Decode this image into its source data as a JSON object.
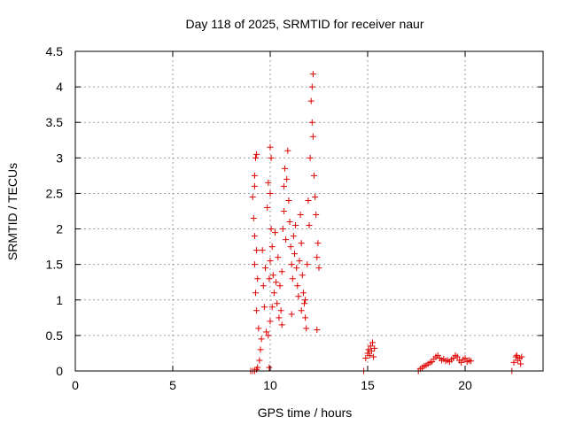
{
  "chart_data": {
    "type": "scatter",
    "title": "Day 118 of 2025, SRMTID for receiver naur",
    "xlabel": "GPS time / hours",
    "ylabel": "SRMTID / TECUs",
    "xlim": [
      0,
      24
    ],
    "ylim": [
      0,
      4.5
    ],
    "x_ticks": [
      0,
      5,
      10,
      15,
      20
    ],
    "x_tick_labels": [
      "0",
      "5",
      "10",
      "15",
      "20"
    ],
    "y_ticks": [
      0,
      0.5,
      1,
      1.5,
      2,
      2.5,
      3,
      3.5,
      4,
      4.5
    ],
    "y_tick_labels": [
      "0",
      "0.5",
      "1",
      "1.5",
      "2",
      "2.5",
      "3",
      "3.5",
      "4",
      "4.5"
    ],
    "grid": true,
    "marker": "+",
    "color": "#e00000",
    "series": [
      {
        "name": "SRMTID",
        "points": [
          [
            9.0,
            0.0
          ],
          [
            9.1,
            0.0
          ],
          [
            9.2,
            0.0
          ],
          [
            9.3,
            0.02
          ],
          [
            9.35,
            0.05
          ],
          [
            9.2,
            2.75
          ],
          [
            9.3,
            3.05
          ],
          [
            9.25,
            3.0
          ],
          [
            9.2,
            2.6
          ],
          [
            9.1,
            2.45
          ],
          [
            9.15,
            2.15
          ],
          [
            9.2,
            1.9
          ],
          [
            9.3,
            1.7
          ],
          [
            9.2,
            1.5
          ],
          [
            9.35,
            1.3
          ],
          [
            9.25,
            1.1
          ],
          [
            9.3,
            0.85
          ],
          [
            9.4,
            0.6
          ],
          [
            9.5,
            0.3
          ],
          [
            9.45,
            0.15
          ],
          [
            9.55,
            0.45
          ],
          [
            9.6,
            1.7
          ],
          [
            9.65,
            1.2
          ],
          [
            9.7,
            0.9
          ],
          [
            9.75,
            1.45
          ],
          [
            9.8,
            0.55
          ],
          [
            9.85,
            2.3
          ],
          [
            9.9,
            2.65
          ],
          [
            9.95,
            1.3
          ],
          [
            10.0,
            3.15
          ],
          [
            10.05,
            3.0
          ],
          [
            10.0,
            2.5
          ],
          [
            10.05,
            2.0
          ],
          [
            10.1,
            1.75
          ],
          [
            10.0,
            1.55
          ],
          [
            10.15,
            1.35
          ],
          [
            10.2,
            1.1
          ],
          [
            10.1,
            0.9
          ],
          [
            10.0,
            0.7
          ],
          [
            9.95,
            0.05
          ],
          [
            9.9,
            0.5
          ],
          [
            10.25,
            1.95
          ],
          [
            10.3,
            1.25
          ],
          [
            10.35,
            0.95
          ],
          [
            10.4,
            1.6
          ],
          [
            10.45,
            0.75
          ],
          [
            10.5,
            1.2
          ],
          [
            10.55,
            0.85
          ],
          [
            10.6,
            1.4
          ],
          [
            10.65,
            2.0
          ],
          [
            10.7,
            2.6
          ],
          [
            10.75,
            2.85
          ],
          [
            10.7,
            2.25
          ],
          [
            10.8,
            1.85
          ],
          [
            10.85,
            2.7
          ],
          [
            10.9,
            3.1
          ],
          [
            10.95,
            2.4
          ],
          [
            11.0,
            2.1
          ],
          [
            11.05,
            1.75
          ],
          [
            11.1,
            1.5
          ],
          [
            11.15,
            1.3
          ],
          [
            11.2,
            1.9
          ],
          [
            11.25,
            1.65
          ],
          [
            11.3,
            2.05
          ],
          [
            11.35,
            1.45
          ],
          [
            11.4,
            1.2
          ],
          [
            11.45,
            1.05
          ],
          [
            11.5,
            1.55
          ],
          [
            11.55,
            2.2
          ],
          [
            11.6,
            1.8
          ],
          [
            11.65,
            1.35
          ],
          [
            11.7,
            1.1
          ],
          [
            11.75,
            0.95
          ],
          [
            11.8,
            0.75
          ],
          [
            11.85,
            0.6
          ],
          [
            11.9,
            1.5
          ],
          [
            11.95,
            2.4
          ],
          [
            12.0,
            2.05
          ],
          [
            12.05,
            3.0
          ],
          [
            12.1,
            3.8
          ],
          [
            12.15,
            4.0
          ],
          [
            12.2,
            4.18
          ],
          [
            12.15,
            3.5
          ],
          [
            12.2,
            3.3
          ],
          [
            12.25,
            2.75
          ],
          [
            12.3,
            2.45
          ],
          [
            12.35,
            2.2
          ],
          [
            12.4,
            1.6
          ],
          [
            12.45,
            1.8
          ],
          [
            12.5,
            1.45
          ],
          [
            12.4,
            0.58
          ],
          [
            11.8,
            1.0
          ],
          [
            11.6,
            0.85
          ],
          [
            11.1,
            0.8
          ],
          [
            10.6,
            0.65
          ],
          [
            14.8,
            0.0
          ],
          [
            14.9,
            0.18
          ],
          [
            15.0,
            0.25
          ],
          [
            15.05,
            0.3
          ],
          [
            15.1,
            0.22
          ],
          [
            15.15,
            0.35
          ],
          [
            15.2,
            0.28
          ],
          [
            15.25,
            0.4
          ],
          [
            15.3,
            0.2
          ],
          [
            15.35,
            0.32
          ],
          [
            17.6,
            0.0
          ],
          [
            17.7,
            0.03
          ],
          [
            17.8,
            0.05
          ],
          [
            17.9,
            0.07
          ],
          [
            18.0,
            0.08
          ],
          [
            18.1,
            0.1
          ],
          [
            18.2,
            0.12
          ],
          [
            18.3,
            0.13
          ],
          [
            18.4,
            0.17
          ],
          [
            18.5,
            0.2
          ],
          [
            18.6,
            0.22
          ],
          [
            18.7,
            0.18
          ],
          [
            18.8,
            0.15
          ],
          [
            18.9,
            0.17
          ],
          [
            19.0,
            0.14
          ],
          [
            19.1,
            0.15
          ],
          [
            19.2,
            0.13
          ],
          [
            19.3,
            0.16
          ],
          [
            19.4,
            0.18
          ],
          [
            19.5,
            0.22
          ],
          [
            19.6,
            0.2
          ],
          [
            19.7,
            0.15
          ],
          [
            19.8,
            0.12
          ],
          [
            19.9,
            0.16
          ],
          [
            20.0,
            0.18
          ],
          [
            20.1,
            0.13
          ],
          [
            20.2,
            0.15
          ],
          [
            20.3,
            0.14
          ],
          [
            22.4,
            0.0
          ],
          [
            22.5,
            0.12
          ],
          [
            22.6,
            0.2
          ],
          [
            22.65,
            0.22
          ],
          [
            22.7,
            0.15
          ],
          [
            22.8,
            0.18
          ],
          [
            22.85,
            0.1
          ],
          [
            22.9,
            0.2
          ]
        ]
      }
    ]
  }
}
